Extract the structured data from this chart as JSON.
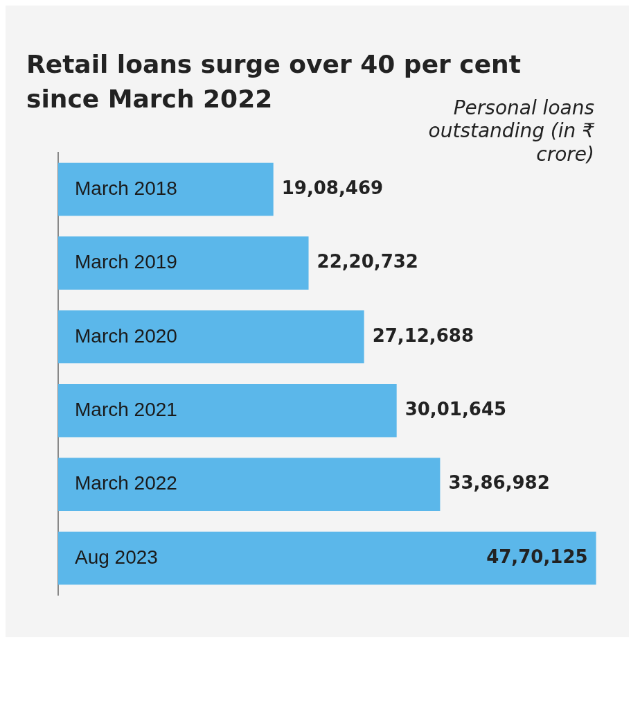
{
  "chart_data": {
    "type": "bar",
    "orientation": "horizontal",
    "title": "Retail loans surge over 40 per cent since March 2022",
    "annotations": [
      "Personal loans outstanding (in ₹ crore)"
    ],
    "categories": [
      "March 2018",
      "March 2019",
      "March 2020",
      "March 2021",
      "March 2022",
      "Aug 2023"
    ],
    "values": [
      1908469,
      2220732,
      2712688,
      3001645,
      3386982,
      4770125
    ],
    "value_labels": [
      "19,08,469",
      "22,20,732",
      "27,12,688",
      "30,01,645",
      "33,86,982",
      "47,70,125"
    ],
    "color": "#5bb7ea",
    "legend": false
  }
}
